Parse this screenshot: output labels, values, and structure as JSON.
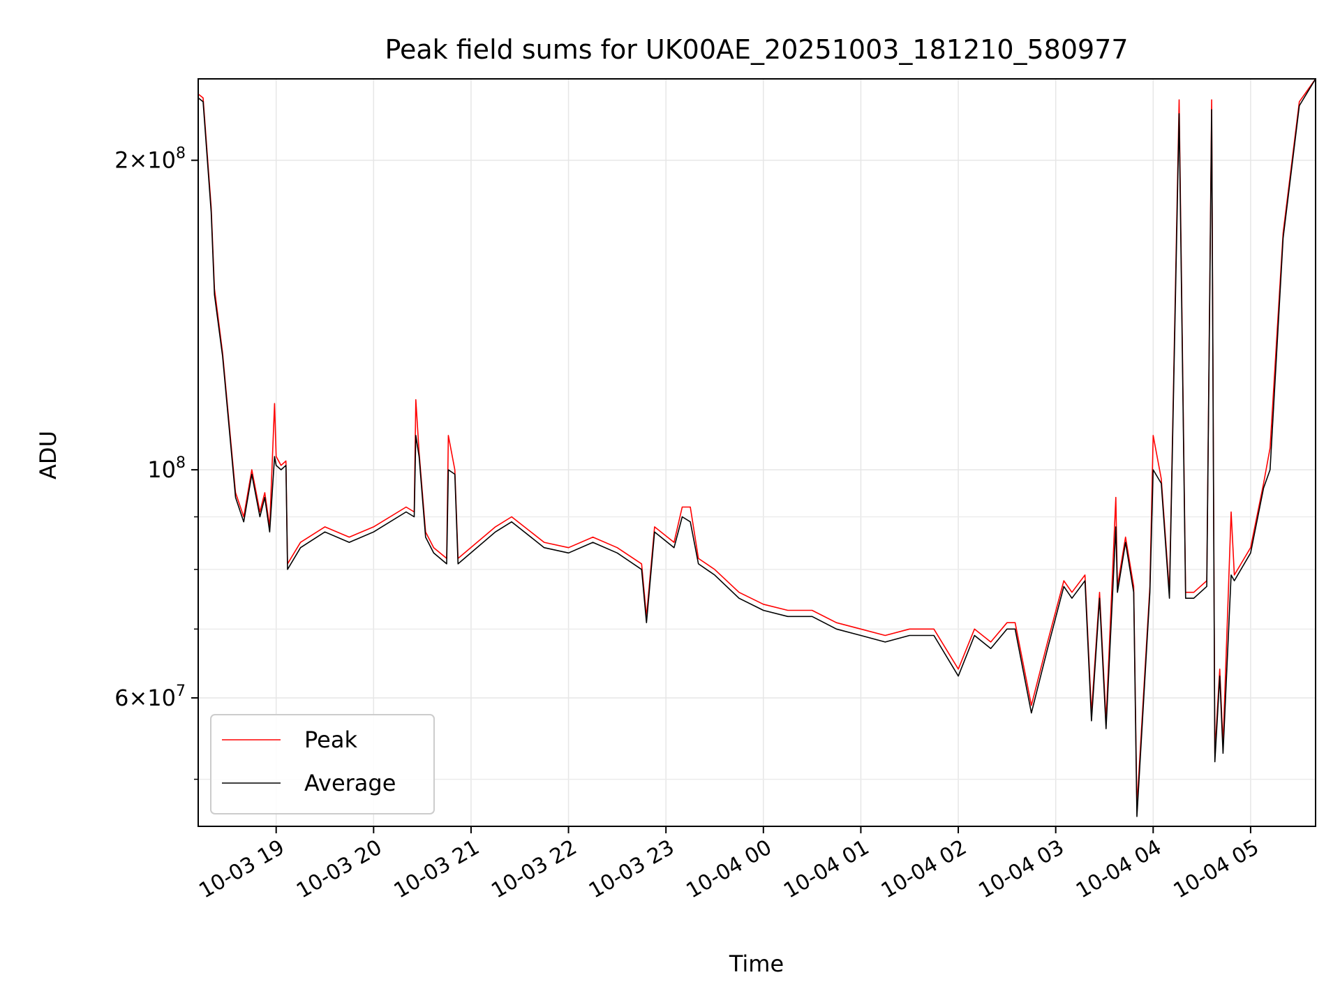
{
  "chart_data": {
    "type": "line",
    "title": "Peak field sums for UK00AE_20251003_181210_580977",
    "xlabel": "Time",
    "ylabel": "ADU",
    "y_scale": "log",
    "ylim": [
      45000000,
      240000000
    ],
    "xlim": [
      "2025-10-03 18:12",
      "2025-10-04 05:40"
    ],
    "grid": true,
    "legend_position": "lower-left",
    "x_ticks": [
      {
        "x": "2025-10-03 19:00",
        "label": "10-03 19"
      },
      {
        "x": "2025-10-03 20:00",
        "label": "10-03 20"
      },
      {
        "x": "2025-10-03 21:00",
        "label": "10-03 21"
      },
      {
        "x": "2025-10-03 22:00",
        "label": "10-03 22"
      },
      {
        "x": "2025-10-03 23:00",
        "label": "10-03 23"
      },
      {
        "x": "2025-10-04 00:00",
        "label": "10-04 00"
      },
      {
        "x": "2025-10-04 01:00",
        "label": "10-04 01"
      },
      {
        "x": "2025-10-04 02:00",
        "label": "10-04 02"
      },
      {
        "x": "2025-10-04 03:00",
        "label": "10-04 03"
      },
      {
        "x": "2025-10-04 04:00",
        "label": "10-04 04"
      },
      {
        "x": "2025-10-04 05:00",
        "label": "10-04 05"
      }
    ],
    "y_ticks": [
      {
        "value": 60000000,
        "mantissa": "6",
        "exponent": "7"
      },
      {
        "value": 100000000,
        "mantissa": "",
        "exponent": "8"
      },
      {
        "value": 200000000,
        "mantissa": "2",
        "exponent": "8"
      }
    ],
    "y_minor_ticks": [
      50000000,
      70000000,
      80000000,
      90000000
    ],
    "series": [
      {
        "name": "Peak",
        "color": "#ff0000",
        "x": [
          "2025-10-03 18:12",
          "2025-10-03 18:15",
          "2025-10-03 18:20",
          "2025-10-03 18:22",
          "2025-10-03 18:27",
          "2025-10-03 18:35",
          "2025-10-03 18:40",
          "2025-10-03 18:45",
          "2025-10-03 18:50",
          "2025-10-03 18:53",
          "2025-10-03 18:56",
          "2025-10-03 18:59",
          "2025-10-03 19:00",
          "2025-10-03 19:03",
          "2025-10-03 19:06",
          "2025-10-03 19:07",
          "2025-10-03 19:15",
          "2025-10-03 19:30",
          "2025-10-03 19:45",
          "2025-10-03 20:00",
          "2025-10-03 20:20",
          "2025-10-03 20:25",
          "2025-10-03 20:26",
          "2025-10-03 20:28",
          "2025-10-03 20:32",
          "2025-10-03 20:37",
          "2025-10-03 20:45",
          "2025-10-03 20:46",
          "2025-10-03 20:50",
          "2025-10-03 20:52",
          "2025-10-03 21:15",
          "2025-10-03 21:25",
          "2025-10-03 21:45",
          "2025-10-03 22:00",
          "2025-10-03 22:15",
          "2025-10-03 22:30",
          "2025-10-03 22:45",
          "2025-10-03 22:48",
          "2025-10-03 22:53",
          "2025-10-03 23:05",
          "2025-10-03 23:10",
          "2025-10-03 23:15",
          "2025-10-03 23:20",
          "2025-10-03 23:30",
          "2025-10-03 23:45",
          "2025-10-04 00:00",
          "2025-10-04 00:15",
          "2025-10-04 00:30",
          "2025-10-04 00:45",
          "2025-10-04 01:00",
          "2025-10-04 01:15",
          "2025-10-04 01:30",
          "2025-10-04 01:45",
          "2025-10-04 02:00",
          "2025-10-04 02:10",
          "2025-10-04 02:20",
          "2025-10-04 02:30",
          "2025-10-04 02:35",
          "2025-10-04 02:45",
          "2025-10-04 02:55",
          "2025-10-04 03:05",
          "2025-10-04 03:10",
          "2025-10-04 03:18",
          "2025-10-04 03:22",
          "2025-10-04 03:27",
          "2025-10-04 03:31",
          "2025-10-04 03:37",
          "2025-10-04 03:38",
          "2025-10-04 03:43",
          "2025-10-04 03:48",
          "2025-10-04 03:50",
          "2025-10-04 03:58",
          "2025-10-04 04:00",
          "2025-10-04 04:05",
          "2025-10-04 04:10",
          "2025-10-04 04:16",
          "2025-10-04 04:20",
          "2025-10-04 04:25",
          "2025-10-04 04:33",
          "2025-10-04 04:36",
          "2025-10-04 04:38",
          "2025-10-04 04:41",
          "2025-10-04 04:43",
          "2025-10-04 04:48",
          "2025-10-04 04:50",
          "2025-10-04 05:00",
          "2025-10-04 05:08",
          "2025-10-04 05:12",
          "2025-10-04 05:20",
          "2025-10-04 05:30",
          "2025-10-04 05:40"
        ],
        "y": [
          232000000,
          230000000,
          180000000,
          150000000,
          130000000,
          95000000,
          90000000,
          100000000,
          91000000,
          95000000,
          88000000,
          116000000,
          103000000,
          101000000,
          102000000,
          81000000,
          85000000,
          88000000,
          86000000,
          88000000,
          92000000,
          91000000,
          117000000,
          104000000,
          87000000,
          84000000,
          82000000,
          108000000,
          100000000,
          82000000,
          88000000,
          90000000,
          85000000,
          84000000,
          86000000,
          84000000,
          81000000,
          72000000,
          88000000,
          85000000,
          92000000,
          92000000,
          82000000,
          80000000,
          76000000,
          74000000,
          73000000,
          73000000,
          71000000,
          70000000,
          69000000,
          70000000,
          70000000,
          64000000,
          70000000,
          68000000,
          71000000,
          71000000,
          59000000,
          68000000,
          78000000,
          76000000,
          79000000,
          58000000,
          76000000,
          57000000,
          94000000,
          77000000,
          86000000,
          77000000,
          47000000,
          77000000,
          108000000,
          98000000,
          76000000,
          229000000,
          76000000,
          76000000,
          78000000,
          229000000,
          53000000,
          64000000,
          54000000,
          91000000,
          79000000,
          84000000,
          97000000,
          105000000,
          170000000,
          228000000,
          240000000
        ]
      },
      {
        "name": "Average",
        "color": "#000000",
        "x": [
          "2025-10-03 18:12",
          "2025-10-03 18:15",
          "2025-10-03 18:20",
          "2025-10-03 18:22",
          "2025-10-03 18:27",
          "2025-10-03 18:35",
          "2025-10-03 18:40",
          "2025-10-03 18:45",
          "2025-10-03 18:50",
          "2025-10-03 18:53",
          "2025-10-03 18:56",
          "2025-10-03 18:59",
          "2025-10-03 19:00",
          "2025-10-03 19:03",
          "2025-10-03 19:06",
          "2025-10-03 19:07",
          "2025-10-03 19:15",
          "2025-10-03 19:30",
          "2025-10-03 19:45",
          "2025-10-03 20:00",
          "2025-10-03 20:20",
          "2025-10-03 20:25",
          "2025-10-03 20:26",
          "2025-10-03 20:28",
          "2025-10-03 20:32",
          "2025-10-03 20:37",
          "2025-10-03 20:45",
          "2025-10-03 20:46",
          "2025-10-03 20:50",
          "2025-10-03 20:52",
          "2025-10-03 21:15",
          "2025-10-03 21:25",
          "2025-10-03 21:45",
          "2025-10-03 22:00",
          "2025-10-03 22:15",
          "2025-10-03 22:30",
          "2025-10-03 22:45",
          "2025-10-03 22:48",
          "2025-10-03 22:53",
          "2025-10-03 23:05",
          "2025-10-03 23:10",
          "2025-10-03 23:15",
          "2025-10-03 23:20",
          "2025-10-03 23:30",
          "2025-10-03 23:45",
          "2025-10-04 00:00",
          "2025-10-04 00:15",
          "2025-10-04 00:30",
          "2025-10-04 00:45",
          "2025-10-04 01:00",
          "2025-10-04 01:15",
          "2025-10-04 01:30",
          "2025-10-04 01:45",
          "2025-10-04 02:00",
          "2025-10-04 02:10",
          "2025-10-04 02:20",
          "2025-10-04 02:30",
          "2025-10-04 02:35",
          "2025-10-04 02:45",
          "2025-10-04 02:55",
          "2025-10-04 03:05",
          "2025-10-04 03:10",
          "2025-10-04 03:18",
          "2025-10-04 03:22",
          "2025-10-04 03:27",
          "2025-10-04 03:31",
          "2025-10-04 03:37",
          "2025-10-04 03:38",
          "2025-10-04 03:43",
          "2025-10-04 03:48",
          "2025-10-04 03:50",
          "2025-10-04 03:58",
          "2025-10-04 04:00",
          "2025-10-04 04:05",
          "2025-10-04 04:10",
          "2025-10-04 04:16",
          "2025-10-04 04:20",
          "2025-10-04 04:25",
          "2025-10-04 04:33",
          "2025-10-04 04:36",
          "2025-10-04 04:38",
          "2025-10-04 04:41",
          "2025-10-04 04:43",
          "2025-10-04 04:48",
          "2025-10-04 04:50",
          "2025-10-04 05:00",
          "2025-10-04 05:08",
          "2025-10-04 05:12",
          "2025-10-04 05:20",
          "2025-10-04 05:30",
          "2025-10-04 05:40"
        ],
        "y": [
          230000000,
          228000000,
          178000000,
          148000000,
          129000000,
          94000000,
          89000000,
          99000000,
          90000000,
          94000000,
          87000000,
          103000000,
          101000000,
          100000000,
          101000000,
          80000000,
          84000000,
          87000000,
          85000000,
          87000000,
          91000000,
          90000000,
          108000000,
          103000000,
          86000000,
          83000000,
          81000000,
          100000000,
          99000000,
          81000000,
          87000000,
          89000000,
          84000000,
          83000000,
          85000000,
          83000000,
          80000000,
          71000000,
          87000000,
          84000000,
          90000000,
          89000000,
          81000000,
          79000000,
          75000000,
          73000000,
          72000000,
          72000000,
          70000000,
          69000000,
          68000000,
          69000000,
          69000000,
          63000000,
          69000000,
          67000000,
          70000000,
          70000000,
          58000000,
          67000000,
          77000000,
          75000000,
          78000000,
          57000000,
          75000000,
          56000000,
          88000000,
          76000000,
          85000000,
          76000000,
          46000000,
          76000000,
          100000000,
          97000000,
          75000000,
          222000000,
          75000000,
          75000000,
          77000000,
          224000000,
          52000000,
          63000000,
          53000000,
          79000000,
          78000000,
          83000000,
          96000000,
          100000000,
          168000000,
          226000000,
          240000000
        ]
      }
    ]
  }
}
